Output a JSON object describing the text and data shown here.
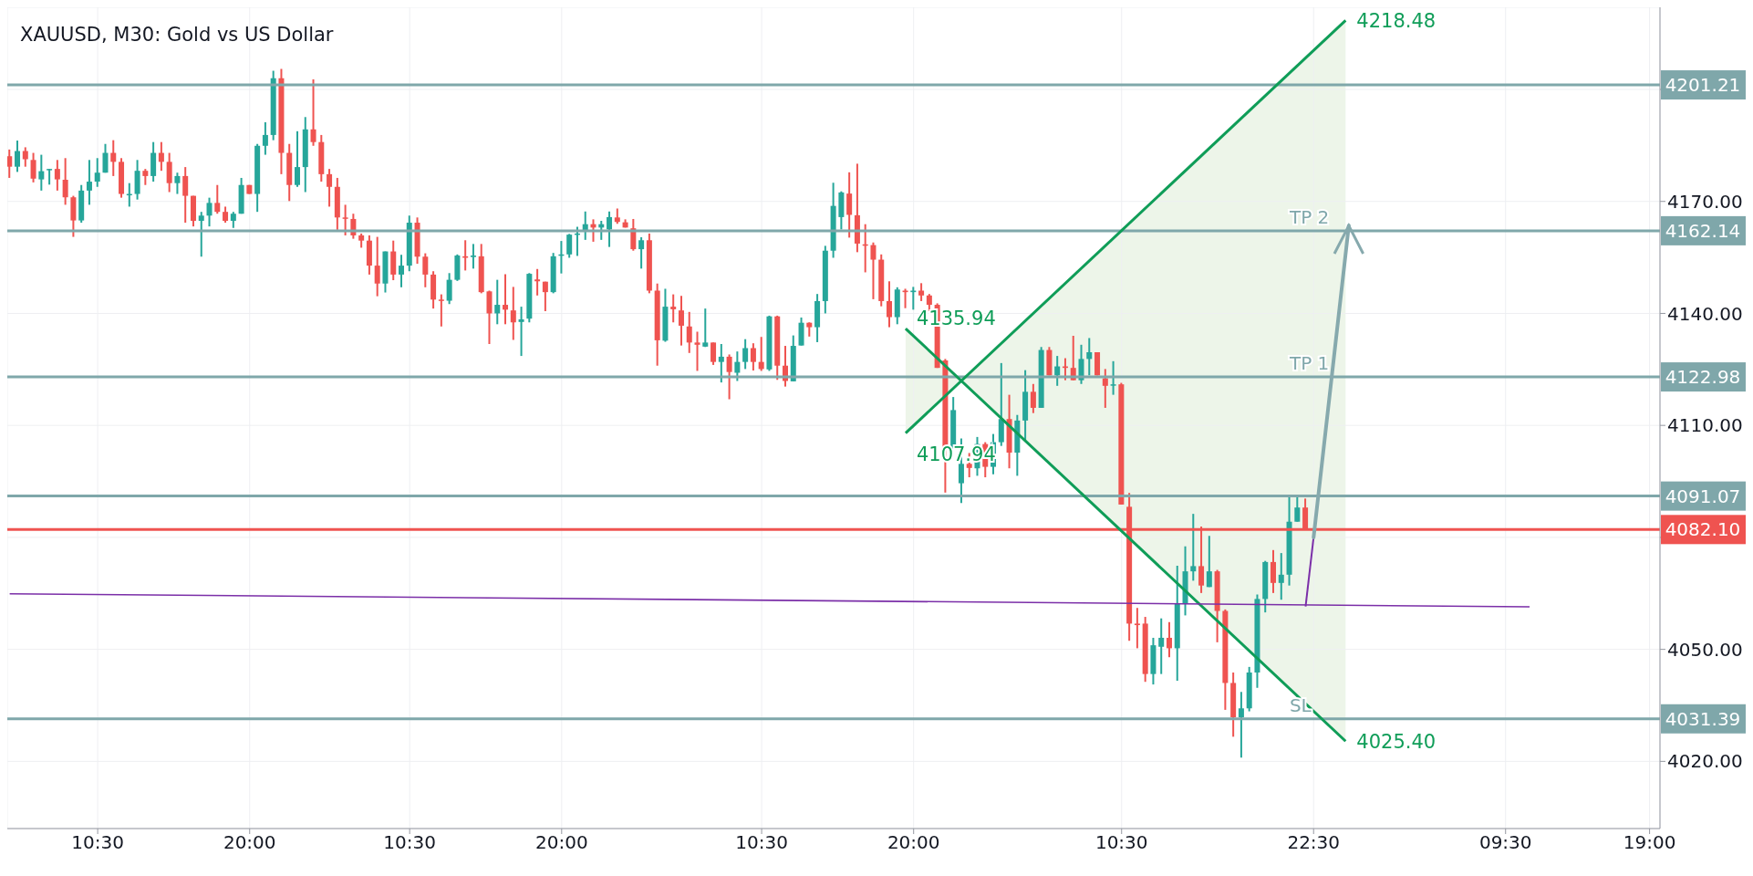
{
  "chart_data": {
    "type": "candlestick",
    "title": "XAUUSD, M30: Gold vs US Dollar",
    "categories": [
      null,
      null,
      null,
      null,
      null,
      null,
      null,
      null,
      null,
      null,
      null,
      "10:30",
      null,
      null,
      null,
      null,
      null,
      null,
      null,
      null,
      null,
      null,
      null,
      null,
      null,
      null,
      null,
      null,
      null,
      null,
      "20:00",
      null,
      null,
      null,
      null,
      null,
      null,
      null,
      null,
      null,
      null,
      null,
      null,
      null,
      null,
      null,
      null,
      null,
      null,
      null,
      "10:30",
      null,
      null,
      null,
      null,
      null,
      null,
      null,
      null,
      null,
      null,
      null,
      null,
      null,
      null,
      null,
      null,
      null,
      null,
      "20:00",
      null,
      null,
      null,
      null,
      null,
      null,
      null,
      null,
      null,
      null,
      null,
      null,
      null,
      null,
      null,
      null,
      null,
      null,
      null,
      null,
      null,
      null,
      null,
      null,
      "10:30",
      null,
      null,
      null,
      null,
      null,
      null,
      null,
      null,
      null,
      null,
      null,
      null,
      null,
      null,
      null,
      null,
      null,
      null,
      "20:00",
      null,
      null,
      null,
      null,
      null,
      null,
      null,
      null,
      null,
      null,
      null,
      null,
      null,
      null,
      null,
      null,
      null,
      null,
      null,
      null,
      null,
      null,
      null,
      null,
      null,
      "10:30",
      null,
      null,
      null,
      null,
      null,
      null,
      null,
      null,
      null,
      null,
      null,
      null,
      null,
      null,
      null,
      null,
      null,
      null,
      null,
      null,
      null,
      null,
      null,
      "22:30",
      null,
      null,
      null,
      null,
      null,
      null,
      null,
      null,
      null,
      null,
      null,
      null,
      null,
      null,
      null,
      null,
      null,
      null,
      null,
      null,
      null,
      null,
      null,
      "09:30",
      null,
      null,
      null,
      null,
      null,
      null,
      null,
      null,
      null,
      null,
      null,
      null,
      null,
      null,
      null,
      null,
      null,
      "19:00",
      null
    ],
    "ohlc": [
      [
        4182.1,
        4183.9,
        4176.3,
        4179.3
      ],
      [
        4179.3,
        4186.3,
        4177.9,
        4183.5
      ],
      [
        4183.5,
        4184.5,
        4179.3,
        4181.3
      ],
      [
        4181.1,
        4183.0,
        4175.1,
        4176.1
      ],
      [
        4175.9,
        4182.5,
        4172.9,
        4178.1
      ],
      [
        4178.5,
        4178.7,
        4174.5,
        4178.7
      ],
      [
        4178.7,
        4181.1,
        4172.9,
        4175.9
      ],
      [
        4175.8,
        4181.6,
        4169.1,
        4171.1
      ],
      [
        4171.1,
        4171.5,
        4160.5,
        4164.9
      ],
      [
        4164.9,
        4174.4,
        4164.3,
        4172.9
      ],
      [
        4172.9,
        4181.1,
        4169.1,
        4175.3
      ],
      [
        4175.3,
        4181.6,
        4173.9,
        4177.7
      ],
      [
        4177.7,
        4185.4,
        4177.7,
        4183.0
      ],
      [
        4183.0,
        4186.4,
        4176.8,
        4180.6
      ],
      [
        4180.6,
        4181.6,
        4171.0,
        4172.0
      ],
      [
        4171.7,
        4174.9,
        4168.6,
        4172.0
      ],
      [
        4172.0,
        4181.1,
        4170.5,
        4178.2
      ],
      [
        4178.2,
        4178.7,
        4174.4,
        4176.8
      ],
      [
        4176.8,
        4185.9,
        4175.3,
        4183.0
      ],
      [
        4183.0,
        4185.9,
        4178.2,
        4180.6
      ],
      [
        4180.6,
        4183.0,
        4172.5,
        4174.9
      ],
      [
        4174.9,
        4177.7,
        4172.0,
        4176.8
      ],
      [
        4176.8,
        4179.2,
        4164.3,
        4171.5
      ],
      [
        4171.5,
        4171.5,
        4163.3,
        4164.8
      ],
      [
        4164.8,
        4167.2,
        4155.2,
        4166.2
      ],
      [
        4166.2,
        4171.0,
        4163.3,
        4169.6
      ],
      [
        4169.6,
        4174.4,
        4166.7,
        4167.2
      ],
      [
        4167.2,
        4168.6,
        4164.3,
        4164.8
      ],
      [
        4164.8,
        4167.2,
        4162.9,
        4166.7
      ],
      [
        4166.7,
        4176.3,
        4166.7,
        4174.4
      ],
      [
        4174.4,
        4174.4,
        4172.0,
        4172.0
      ],
      [
        4172.0,
        4185.4,
        4167.2,
        4184.9
      ],
      [
        4184.9,
        4191.2,
        4182.5,
        4187.8
      ],
      [
        4187.8,
        4205.0,
        4186.4,
        4203.0
      ],
      [
        4203.0,
        4205.5,
        4177.3,
        4183.0
      ],
      [
        4183.0,
        4185.4,
        4170.1,
        4174.4
      ],
      [
        4174.4,
        4188.8,
        4173.9,
        4179.2
      ],
      [
        4179.2,
        4192.6,
        4172.5,
        4189.3
      ],
      [
        4189.3,
        4202.7,
        4184.9,
        4185.9
      ],
      [
        4185.9,
        4187.8,
        4175.3,
        4177.3
      ],
      [
        4177.3,
        4178.7,
        4168.6,
        4173.9
      ],
      [
        4173.9,
        4176.3,
        4162.4,
        4165.7
      ],
      [
        4165.7,
        4169.1,
        4160.9,
        4165.5
      ],
      [
        4165.3,
        4166.7,
        4160.0,
        4160.9
      ],
      [
        4160.9,
        4161.4,
        4157.6,
        4159.5
      ],
      [
        4159.5,
        4160.9,
        4150.4,
        4152.8
      ],
      [
        4152.8,
        4160.5,
        4144.6,
        4148.0
      ],
      [
        4148.0,
        4156.6,
        4145.6,
        4156.6
      ],
      [
        4156.6,
        4159.5,
        4148.9,
        4150.4
      ],
      [
        4150.4,
        4155.7,
        4147.0,
        4152.8
      ],
      [
        4152.8,
        4166.2,
        4151.3,
        4164.3
      ],
      [
        4164.3,
        4165.7,
        4153.3,
        4155.2
      ],
      [
        4155.2,
        4156.1,
        4147.0,
        4150.4
      ],
      [
        4150.4,
        4151.3,
        4141.3,
        4143.7
      ],
      [
        4143.7,
        4145.1,
        4136.5,
        4143.4
      ],
      [
        4143.4,
        4150.8,
        4142.5,
        4149.0
      ],
      [
        4149.0,
        4155.8,
        4148.7,
        4155.5
      ],
      [
        4155.3,
        4159.6,
        4151.5,
        4154.9
      ],
      [
        4155.1,
        4158.6,
        4152.0,
        4155.5
      ],
      [
        4155.3,
        4158.6,
        4145.4,
        4145.7
      ],
      [
        4145.9,
        4146.1,
        4131.8,
        4140.0
      ],
      [
        4140.0,
        4149.0,
        4137.1,
        4142.3
      ],
      [
        4142.3,
        4150.5,
        4137.1,
        4141.0
      ],
      [
        4140.8,
        4147.1,
        4132.9,
        4137.6
      ],
      [
        4137.7,
        4141.8,
        4128.6,
        4138.4
      ],
      [
        4138.6,
        4150.8,
        4137.6,
        4150.6
      ],
      [
        4149.1,
        4151.9,
        4144.8,
        4148.6
      ],
      [
        4148.5,
        4148.5,
        4140.6,
        4145.7
      ],
      [
        4145.7,
        4156.2,
        4145.4,
        4155.3
      ],
      [
        4155.5,
        4159.4,
        4150.7,
        4155.8
      ],
      [
        4155.8,
        4161.3,
        4154.9,
        4161.1
      ],
      [
        4161.1,
        4163.2,
        4155.4,
        4161.4
      ],
      [
        4162.1,
        4167.3,
        4159.7,
        4163.9
      ],
      [
        4163.9,
        4165.2,
        4159.2,
        4163.0
      ],
      [
        4163.0,
        4164.8,
        4159.7,
        4163.9
      ],
      [
        4162.5,
        4167.3,
        4157.8,
        4165.8
      ],
      [
        4165.7,
        4168.1,
        4164.0,
        4164.5
      ],
      [
        4164.4,
        4165.2,
        4163.0,
        4163.0
      ],
      [
        4162.8,
        4165.3,
        4156.8,
        4157.2
      ],
      [
        4157.2,
        4160.4,
        4152.0,
        4159.6
      ],
      [
        4159.6,
        4161.4,
        4145.4,
        4146.1
      ],
      [
        4146.1,
        4148.0,
        4126.0,
        4132.8
      ],
      [
        4132.7,
        4146.6,
        4132.4,
        4141.8
      ],
      [
        4141.8,
        4145.1,
        4137.6,
        4141.1
      ],
      [
        4140.8,
        4144.7,
        4131.4,
        4136.7
      ],
      [
        4136.5,
        4140.4,
        4129.4,
        4132.2
      ],
      [
        4132.2,
        4135.1,
        4124.6,
        4131.6
      ],
      [
        4131.1,
        4141.3,
        4131.0,
        4132.2
      ],
      [
        4132.2,
        4132.2,
        4126.2,
        4127.0
      ],
      [
        4127.0,
        4131.8,
        4121.5,
        4128.4
      ],
      [
        4128.4,
        4129.0,
        4117.0,
        4124.3
      ],
      [
        4124.1,
        4129.8,
        4121.9,
        4127.0
      ],
      [
        4127.0,
        4133.1,
        4125.1,
        4130.7
      ],
      [
        4130.7,
        4132.0,
        4124.7,
        4127.0
      ],
      [
        4127.0,
        4133.7,
        4124.6,
        4125.1
      ],
      [
        4125.0,
        4139.4,
        4124.6,
        4139.2
      ],
      [
        4139.2,
        4139.4,
        4122.2,
        4126.0
      ],
      [
        4126.0,
        4131.3,
        4120.4,
        4121.9
      ],
      [
        4121.8,
        4134.1,
        4121.8,
        4131.3
      ],
      [
        4131.4,
        4138.9,
        4131.4,
        4137.5
      ],
      [
        4137.5,
        4137.6,
        4133.8,
        4136.3
      ],
      [
        4136.3,
        4145.2,
        4132.3,
        4143.3
      ],
      [
        4143.3,
        4158.1,
        4140.0,
        4156.8
      ],
      [
        4156.8,
        4175.0,
        4154.9,
        4168.8
      ],
      [
        4165.8,
        4172.7,
        4162.5,
        4172.4
      ],
      [
        4172.1,
        4177.8,
        4160.3,
        4166.4
      ],
      [
        4166.3,
        4180.1,
        4156.4,
        4158.7
      ],
      [
        4158.5,
        4163.9,
        4151.0,
        4158.3
      ],
      [
        4158.3,
        4159.0,
        4143.8,
        4154.4
      ],
      [
        4154.4,
        4155.8,
        4141.9,
        4143.3
      ],
      [
        4143.3,
        4148.6,
        4136.3,
        4139.0
      ],
      [
        4139.0,
        4147.0,
        4137.1,
        4146.4
      ],
      [
        4146.1,
        4146.6,
        4141.4,
        4145.7
      ],
      [
        4145.7,
        4147.1,
        4141.0,
        4146.1
      ],
      [
        4146.1,
        4148.1,
        4143.3,
        4144.8
      ],
      [
        4144.8,
        4145.2,
        4140.6,
        4142.3
      ],
      [
        4142.3,
        4142.7,
        4125.4,
        4125.4
      ],
      [
        4127.4,
        4127.8,
        4092.0,
        4103.7
      ],
      [
        4103.7,
        4117.6,
        4103.7,
        4114.1
      ],
      [
        4094.5,
        4106.5,
        4089.2,
        4099.7
      ],
      [
        4099.7,
        4102.6,
        4096.1,
        4098.6
      ],
      [
        4098.5,
        4106.9,
        4096.5,
        4105.0
      ],
      [
        4105.0,
        4105.5,
        4096.1,
        4098.9
      ],
      [
        4098.9,
        4107.7,
        4096.9,
        4105.5
      ],
      [
        4105.5,
        4126.7,
        4104.5,
        4111.7
      ],
      [
        4111.7,
        4118.2,
        4098.5,
        4102.7
      ],
      [
        4102.7,
        4112.8,
        4096.5,
        4111.3
      ],
      [
        4111.3,
        4124.8,
        4106.1,
        4119.0
      ],
      [
        4119.0,
        4121.1,
        4113.3,
        4114.7
      ],
      [
        4114.7,
        4131.0,
        4114.7,
        4130.2
      ],
      [
        4130.2,
        4131.0,
        4123.4,
        4123.4
      ],
      [
        4123.4,
        4128.6,
        4120.6,
        4125.8
      ],
      [
        4125.8,
        4128.0,
        4122.1,
        4125.4
      ],
      [
        4125.4,
        4134.0,
        4122.1,
        4122.1
      ],
      [
        4122.1,
        4131.6,
        4121.1,
        4127.8
      ],
      [
        4127.8,
        4133.4,
        4123.4,
        4129.6
      ],
      [
        4129.6,
        4129.6,
        4123.4,
        4123.4
      ],
      [
        4122.6,
        4125.1,
        4114.7,
        4120.6
      ],
      [
        4120.7,
        4127.2,
        4118.2,
        4121.0
      ],
      [
        4121.0,
        4121.4,
        4088.8,
        4088.8
      ],
      [
        4088.2,
        4091.9,
        4052.3,
        4056.9
      ],
      [
        4056.9,
        4061.1,
        4050.3,
        4056.5
      ],
      [
        4056.9,
        4058.7,
        4041.3,
        4043.4
      ],
      [
        4043.4,
        4053.1,
        4040.6,
        4051.1
      ],
      [
        4050.7,
        4058.3,
        4043.4,
        4053.1
      ],
      [
        4053.1,
        4057.3,
        4047.9,
        4050.3
      ],
      [
        4050.3,
        4072.4,
        4041.6,
        4062.2
      ],
      [
        4062.2,
        4077.6,
        4059.1,
        4070.9
      ],
      [
        4070.9,
        4086.3,
        4068.4,
        4072.3
      ],
      [
        4072.3,
        4082.9,
        4065.1,
        4067.1
      ],
      [
        4066.7,
        4080.4,
        4066.7,
        4070.9
      ],
      [
        4070.9,
        4071.3,
        4051.9,
        4060.3
      ],
      [
        4060.3,
        4060.7,
        4033.8,
        4041.0
      ],
      [
        4041.0,
        4043.8,
        4026.6,
        4031.8
      ],
      [
        4031.8,
        4038.6,
        4021.0,
        4034.2
      ],
      [
        4034.2,
        4045.3,
        4033.4,
        4043.8
      ],
      [
        4043.8,
        4064.7,
        4039.7,
        4063.5
      ],
      [
        4063.5,
        4073.7,
        4059.9,
        4073.4
      ],
      [
        4073.4,
        4076.6,
        4065.1,
        4067.8
      ],
      [
        4067.8,
        4075.8,
        4063.3,
        4070.0
      ],
      [
        4070.0,
        4090.8,
        4067.1,
        4084.2
      ],
      [
        4084.2,
        4090.8,
        4084.2,
        4088.0
      ],
      [
        4088.0,
        4090.4,
        4082.1,
        4082.1
      ],
      null,
      null,
      null,
      null,
      null,
      null,
      null,
      null,
      null,
      null,
      null,
      null,
      null,
      null,
      null,
      null,
      null,
      null,
      null,
      null,
      null,
      null,
      null,
      null,
      null,
      null,
      null,
      null,
      null,
      null,
      null,
      null,
      null,
      null,
      null,
      null,
      null,
      null,
      null,
      null,
      null,
      null,
      null,
      null
    ],
    "series": [
      {
        "type": "line",
        "color": "#0f9d58",
        "values": [
          null,
          null,
          null,
          null,
          null,
          null,
          null,
          null,
          null,
          null,
          null,
          null,
          null,
          null,
          null,
          null,
          null,
          null,
          null,
          null,
          null,
          null,
          null,
          null,
          null,
          null,
          null,
          null,
          null,
          null,
          null,
          null,
          null,
          null,
          null,
          null,
          null,
          null,
          null,
          null,
          null,
          null,
          null,
          null,
          null,
          null,
          null,
          null,
          null,
          null,
          null,
          null,
          null,
          null,
          null,
          null,
          null,
          null,
          null,
          null,
          null,
          null,
          null,
          null,
          null,
          null,
          null,
          null,
          null,
          null,
          null,
          null,
          null,
          null,
          null,
          null,
          null,
          null,
          null,
          null,
          null,
          null,
          null,
          null,
          null,
          null,
          null,
          null,
          null,
          null,
          null,
          null,
          null,
          null,
          null,
          null,
          null,
          null,
          null,
          null,
          null,
          null,
          null,
          null,
          null,
          null,
          null,
          null,
          null,
          null,
          null,
          null,
          4135.94,
          null,
          null,
          null,
          null,
          null,
          null,
          null,
          null,
          null,
          null,
          null,
          null,
          null,
          null,
          null,
          null,
          null,
          null,
          null,
          null,
          null,
          null,
          null,
          null,
          null,
          null,
          null,
          null,
          null,
          null,
          null,
          null,
          null,
          null,
          null,
          null,
          null,
          null,
          null,
          null,
          null,
          null,
          null,
          null,
          null,
          null,
          null,
          null,
          null,
          null,
          null,
          null,
          null,
          null,
          4025.4,
          null,
          null,
          null,
          null,
          null,
          null,
          null,
          null,
          null,
          null,
          null,
          null,
          null,
          null,
          null,
          null,
          null,
          null,
          null,
          null,
          null,
          null,
          null,
          null,
          null,
          null,
          null,
          null,
          null,
          null,
          null,
          null,
          null,
          null,
          null,
          null,
          null,
          null,
          null
        ],
        "value_labels": [
          null,
          null,
          null,
          null,
          null,
          null,
          null,
          null,
          null,
          null,
          null,
          null,
          null,
          null,
          null,
          null,
          null,
          null,
          null,
          null,
          null,
          null,
          null,
          null,
          null,
          null,
          null,
          null,
          null,
          null,
          null,
          null,
          null,
          null,
          null,
          null,
          null,
          null,
          null,
          null,
          null,
          null,
          null,
          null,
          null,
          null,
          null,
          null,
          null,
          null,
          null,
          null,
          null,
          null,
          null,
          null,
          null,
          null,
          null,
          null,
          null,
          null,
          null,
          null,
          null,
          null,
          null,
          null,
          null,
          null,
          null,
          null,
          null,
          null,
          null,
          null,
          null,
          null,
          null,
          null,
          null,
          null,
          null,
          null,
          null,
          null,
          null,
          null,
          null,
          null,
          null,
          null,
          null,
          null,
          null,
          null,
          null,
          null,
          null,
          null,
          null,
          null,
          null,
          null,
          null,
          null,
          null,
          null,
          null,
          null,
          null,
          null,
          "4135.94",
          null,
          null,
          null,
          null,
          null,
          null,
          null,
          null,
          null,
          null,
          null,
          null,
          null,
          null,
          null,
          null,
          null,
          null,
          null,
          null,
          null,
          null,
          null,
          null,
          null,
          null,
          null,
          null,
          null,
          null,
          null,
          null,
          null,
          null,
          null,
          null,
          null,
          null,
          null,
          null,
          null,
          null,
          null,
          null,
          null,
          null,
          null,
          null,
          null,
          null,
          null,
          null,
          null,
          null,
          "4025.40",
          null,
          null,
          null,
          null,
          null,
          null,
          null,
          null,
          null,
          null,
          null,
          null,
          null,
          null,
          null,
          null,
          null,
          null,
          null,
          null,
          null,
          null,
          null,
          null,
          null,
          null,
          null,
          null,
          null,
          null,
          null,
          null,
          null,
          null,
          null,
          null,
          null,
          null,
          null
        ]
      },
      {
        "type": "line",
        "color": "#0f9d58",
        "values": [
          null,
          null,
          null,
          null,
          null,
          null,
          null,
          null,
          null,
          null,
          null,
          null,
          null,
          null,
          null,
          null,
          null,
          null,
          null,
          null,
          null,
          null,
          null,
          null,
          null,
          null,
          null,
          null,
          null,
          null,
          null,
          null,
          null,
          null,
          null,
          null,
          null,
          null,
          null,
          null,
          null,
          null,
          null,
          null,
          null,
          null,
          null,
          null,
          null,
          null,
          null,
          null,
          null,
          null,
          null,
          null,
          null,
          null,
          null,
          null,
          null,
          null,
          null,
          null,
          null,
          null,
          null,
          null,
          null,
          null,
          null,
          null,
          null,
          null,
          null,
          null,
          null,
          null,
          null,
          null,
          null,
          null,
          null,
          null,
          null,
          null,
          null,
          null,
          null,
          null,
          null,
          null,
          null,
          null,
          null,
          null,
          null,
          null,
          null,
          null,
          null,
          null,
          null,
          null,
          null,
          null,
          null,
          null,
          null,
          null,
          null,
          null,
          4107.94,
          null,
          null,
          null,
          null,
          null,
          null,
          null,
          null,
          null,
          null,
          null,
          null,
          null,
          null,
          null,
          null,
          null,
          null,
          null,
          null,
          null,
          null,
          null,
          null,
          null,
          null,
          null,
          null,
          null,
          null,
          null,
          null,
          null,
          null,
          null,
          null,
          null,
          null,
          null,
          null,
          null,
          null,
          null,
          null,
          null,
          null,
          null,
          null,
          null,
          null,
          null,
          null,
          null,
          null,
          4218.48,
          null,
          null,
          null,
          null,
          null,
          null,
          null,
          null,
          null,
          null,
          null,
          null,
          null,
          null,
          null,
          null,
          null,
          null,
          null,
          null,
          null,
          null,
          null,
          null,
          null,
          null,
          null,
          null,
          null,
          null,
          null,
          null,
          null,
          null,
          null,
          null,
          null,
          null,
          null
        ],
        "value_labels": [
          null,
          null,
          null,
          null,
          null,
          null,
          null,
          null,
          null,
          null,
          null,
          null,
          null,
          null,
          null,
          null,
          null,
          null,
          null,
          null,
          null,
          null,
          null,
          null,
          null,
          null,
          null,
          null,
          null,
          null,
          null,
          null,
          null,
          null,
          null,
          null,
          null,
          null,
          null,
          null,
          null,
          null,
          null,
          null,
          null,
          null,
          null,
          null,
          null,
          null,
          null,
          null,
          null,
          null,
          null,
          null,
          null,
          null,
          null,
          null,
          null,
          null,
          null,
          null,
          null,
          null,
          null,
          null,
          null,
          null,
          null,
          null,
          null,
          null,
          null,
          null,
          null,
          null,
          null,
          null,
          null,
          null,
          null,
          null,
          null,
          null,
          null,
          null,
          null,
          null,
          null,
          null,
          null,
          null,
          null,
          null,
          null,
          null,
          null,
          null,
          null,
          null,
          null,
          null,
          null,
          null,
          null,
          null,
          null,
          null,
          null,
          null,
          "4107.94",
          null,
          null,
          null,
          null,
          null,
          null,
          null,
          null,
          null,
          null,
          null,
          null,
          null,
          null,
          null,
          null,
          null,
          null,
          null,
          null,
          null,
          null,
          null,
          null,
          null,
          null,
          null,
          null,
          null,
          null,
          null,
          null,
          null,
          null,
          null,
          null,
          null,
          null,
          null,
          null,
          null,
          null,
          null,
          null,
          null,
          null,
          null,
          null,
          null,
          null,
          null,
          null,
          null,
          null,
          "4218.48",
          null,
          null,
          null,
          null,
          null,
          null,
          null,
          null,
          null,
          null,
          null,
          null,
          null,
          null,
          null,
          null,
          null,
          null,
          null,
          null,
          null,
          null,
          null,
          null,
          null,
          null,
          null,
          null,
          null,
          null,
          null,
          null,
          null,
          null,
          null,
          null,
          null,
          null,
          null
        ]
      },
      {
        "type": "line",
        "color": "#7b2fa8",
        "values": [
          4064.9,
          null,
          null,
          null,
          null,
          null,
          null,
          null,
          null,
          null,
          null,
          null,
          null,
          null,
          null,
          null,
          null,
          null,
          null,
          null,
          null,
          null,
          null,
          null,
          null,
          null,
          null,
          null,
          null,
          null,
          null,
          null,
          null,
          null,
          null,
          null,
          null,
          null,
          null,
          null,
          null,
          null,
          null,
          null,
          null,
          null,
          null,
          null,
          null,
          null,
          null,
          null,
          null,
          null,
          null,
          null,
          null,
          null,
          null,
          null,
          null,
          null,
          null,
          null,
          null,
          null,
          null,
          null,
          null,
          null,
          null,
          null,
          null,
          null,
          null,
          null,
          null,
          null,
          null,
          null,
          null,
          null,
          null,
          null,
          null,
          null,
          null,
          null,
          null,
          null,
          null,
          null,
          null,
          null,
          null,
          null,
          null,
          null,
          null,
          null,
          null,
          null,
          null,
          null,
          null,
          null,
          null,
          null,
          null,
          null,
          null,
          null,
          null,
          null,
          null,
          null,
          null,
          null,
          null,
          null,
          null,
          null,
          null,
          null,
          null,
          null,
          null,
          null,
          null,
          null,
          null,
          null,
          null,
          null,
          null,
          null,
          null,
          null,
          null,
          null,
          null,
          null,
          null,
          null,
          null,
          null,
          null,
          null,
          null,
          null,
          null,
          null,
          null,
          null,
          null,
          null,
          null,
          null,
          null,
          null,
          null,
          null,
          null,
          null,
          null,
          null,
          null,
          null,
          null,
          null,
          null,
          null,
          null,
          null,
          null,
          null,
          null,
          null,
          null,
          null,
          null,
          null,
          null,
          null,
          null,
          null,
          null,
          null,
          null,
          null,
          4061.4,
          null,
          null,
          null,
          null,
          null,
          null,
          null,
          null,
          null,
          null,
          null,
          null,
          null,
          null,
          null,
          null
        ]
      }
    ],
    "ylim": [
      4002,
      4222
    ],
    "yticks": [
      {
        "value": 4020,
        "label": "4020.00"
      },
      {
        "value": 4050,
        "label": "4050.00"
      },
      {
        "value": 4080,
        "label": null
      },
      {
        "value": 4110,
        "label": "4110.00"
      },
      {
        "value": 4140,
        "label": "4140.00"
      },
      {
        "value": 4170,
        "label": "4170.00"
      },
      {
        "value": 4200,
        "label": null
      }
    ],
    "grid": true,
    "ref_lines": [
      {
        "axis": "y",
        "value": 4201.21,
        "label": "4201.21",
        "color": "#7fa7aa"
      },
      {
        "axis": "y",
        "value": 4162.14,
        "label": "4162.14",
        "color": "#7fa7aa"
      },
      {
        "axis": "y",
        "value": 4122.98,
        "label": "4122.98",
        "color": "#7fa7aa"
      },
      {
        "axis": "y",
        "value": 4091.07,
        "label": "4091.07",
        "color": "#7fa7aa"
      },
      {
        "axis": "y",
        "value": 4082.1,
        "label": "4082.10",
        "color": "#ef5350"
      },
      {
        "axis": "y",
        "value": 4031.39,
        "label": "4031.39",
        "color": "#7fa7aa"
      }
    ],
    "annotations": [
      {
        "text": "TP 2",
        "y": 4162.14
      },
      {
        "text": "TP 1",
        "y": 4122.98
      },
      {
        "text": "SL",
        "y": 4031.39
      }
    ]
  }
}
